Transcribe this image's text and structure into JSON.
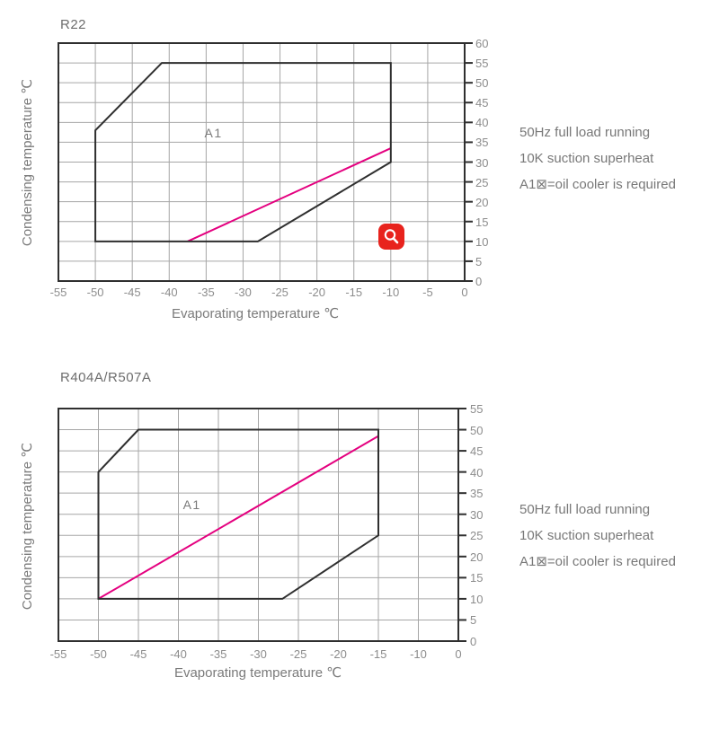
{
  "page": {
    "background": "#ffffff"
  },
  "colors": {
    "envelope_line": "#2f2f2f",
    "grid": "#a6a6a6",
    "oil_cooler_line": "#e4007f",
    "text_gray": "#7a7a7a",
    "tick_gray": "#8c8c8c",
    "zoom_button_red": "#e8231d",
    "zoom_glyph_white": "#ffffff"
  },
  "zoom_button": {
    "icon": "magnifier-icon"
  },
  "chart_data": [
    {
      "type": "line",
      "title": "R22",
      "xlabel": "Evaporating temperature ℃",
      "ylabel": "Condensing temperature ℃",
      "x_range": [
        -55,
        0
      ],
      "y_range": [
        0,
        60
      ],
      "grid": true,
      "x_ticks": [
        {
          "v": -55,
          "label": "-55"
        },
        {
          "v": -50,
          "label": "-50"
        },
        {
          "v": -45,
          "label": "-45"
        },
        {
          "v": -40,
          "label": "-40"
        },
        {
          "v": -35,
          "label": "-35"
        },
        {
          "v": -30,
          "label": "-30"
        },
        {
          "v": -25,
          "label": "-25"
        },
        {
          "v": -20,
          "label": "-20"
        },
        {
          "v": -15,
          "label": "-15"
        },
        {
          "v": -10,
          "label": "-10"
        },
        {
          "v": -5,
          "label": "-5"
        },
        {
          "v": 0,
          "label": "0"
        }
      ],
      "y_ticks": [
        {
          "v": 0,
          "label": "0"
        },
        {
          "v": 5,
          "label": "5"
        },
        {
          "v": 10,
          "label": "10"
        },
        {
          "v": 15,
          "label": "15"
        },
        {
          "v": 20,
          "label": "20"
        },
        {
          "v": 25,
          "label": "25"
        },
        {
          "v": 30,
          "label": "30"
        },
        {
          "v": 35,
          "label": "35"
        },
        {
          "v": 40,
          "label": "40"
        },
        {
          "v": 45,
          "label": "45"
        },
        {
          "v": 50,
          "label": "50"
        },
        {
          "v": 55,
          "label": "55"
        },
        {
          "v": 60,
          "label": "60"
        }
      ],
      "envelope_points": [
        [
          -50,
          10
        ],
        [
          -50,
          38
        ],
        [
          -41,
          55
        ],
        [
          -10,
          55
        ],
        [
          -10,
          30
        ],
        [
          -28,
          10
        ]
      ],
      "oil_cooler_line_points": [
        [
          -37.5,
          10
        ],
        [
          -10,
          33.5
        ]
      ],
      "region_label": {
        "text": "A1",
        "x": -34,
        "y": 37.3
      },
      "notes": [
        "50Hz full load running",
        "10K suction superheat",
        "A1⊠=oil cooler is required"
      ]
    },
    {
      "type": "line",
      "title": "R404A/R507A",
      "xlabel": "Evaporating temperature ℃",
      "ylabel": "Condensing temperature ℃",
      "x_range": [
        -55,
        0
      ],
      "y_range": [
        0,
        55
      ],
      "grid": true,
      "x_ticks": [
        {
          "v": -55,
          "label": "-55"
        },
        {
          "v": -50,
          "label": "-50"
        },
        {
          "v": -45,
          "label": "-45"
        },
        {
          "v": -40,
          "label": "-40"
        },
        {
          "v": -35,
          "label": "-35"
        },
        {
          "v": -30,
          "label": "-30"
        },
        {
          "v": -25,
          "label": "-25"
        },
        {
          "v": -20,
          "label": "-20"
        },
        {
          "v": -15,
          "label": "-15"
        },
        {
          "v": -10,
          "label": "-10"
        },
        {
          "v": 0,
          "label": "0"
        }
      ],
      "y_ticks": [
        {
          "v": 0,
          "label": "0"
        },
        {
          "v": 5,
          "label": "5"
        },
        {
          "v": 10,
          "label": "10"
        },
        {
          "v": 15,
          "label": "15"
        },
        {
          "v": 20,
          "label": "20"
        },
        {
          "v": 25,
          "label": "25"
        },
        {
          "v": 30,
          "label": "30"
        },
        {
          "v": 35,
          "label": "35"
        },
        {
          "v": 40,
          "label": "40"
        },
        {
          "v": 45,
          "label": "45"
        },
        {
          "v": 50,
          "label": "50"
        },
        {
          "v": 55,
          "label": "55"
        }
      ],
      "envelope_points": [
        [
          -50,
          10
        ],
        [
          -50,
          40
        ],
        [
          -45,
          50
        ],
        [
          -15,
          50
        ],
        [
          -15,
          25
        ],
        [
          -27,
          10
        ]
      ],
      "oil_cooler_line_points": [
        [
          -50,
          10
        ],
        [
          -15,
          48.5
        ]
      ],
      "region_label": {
        "text": "A1",
        "x": -38.3,
        "y": 32.3
      },
      "notes": [
        "50Hz full load running",
        "10K suction superheat",
        "A1⊠=oil cooler is required"
      ]
    }
  ]
}
